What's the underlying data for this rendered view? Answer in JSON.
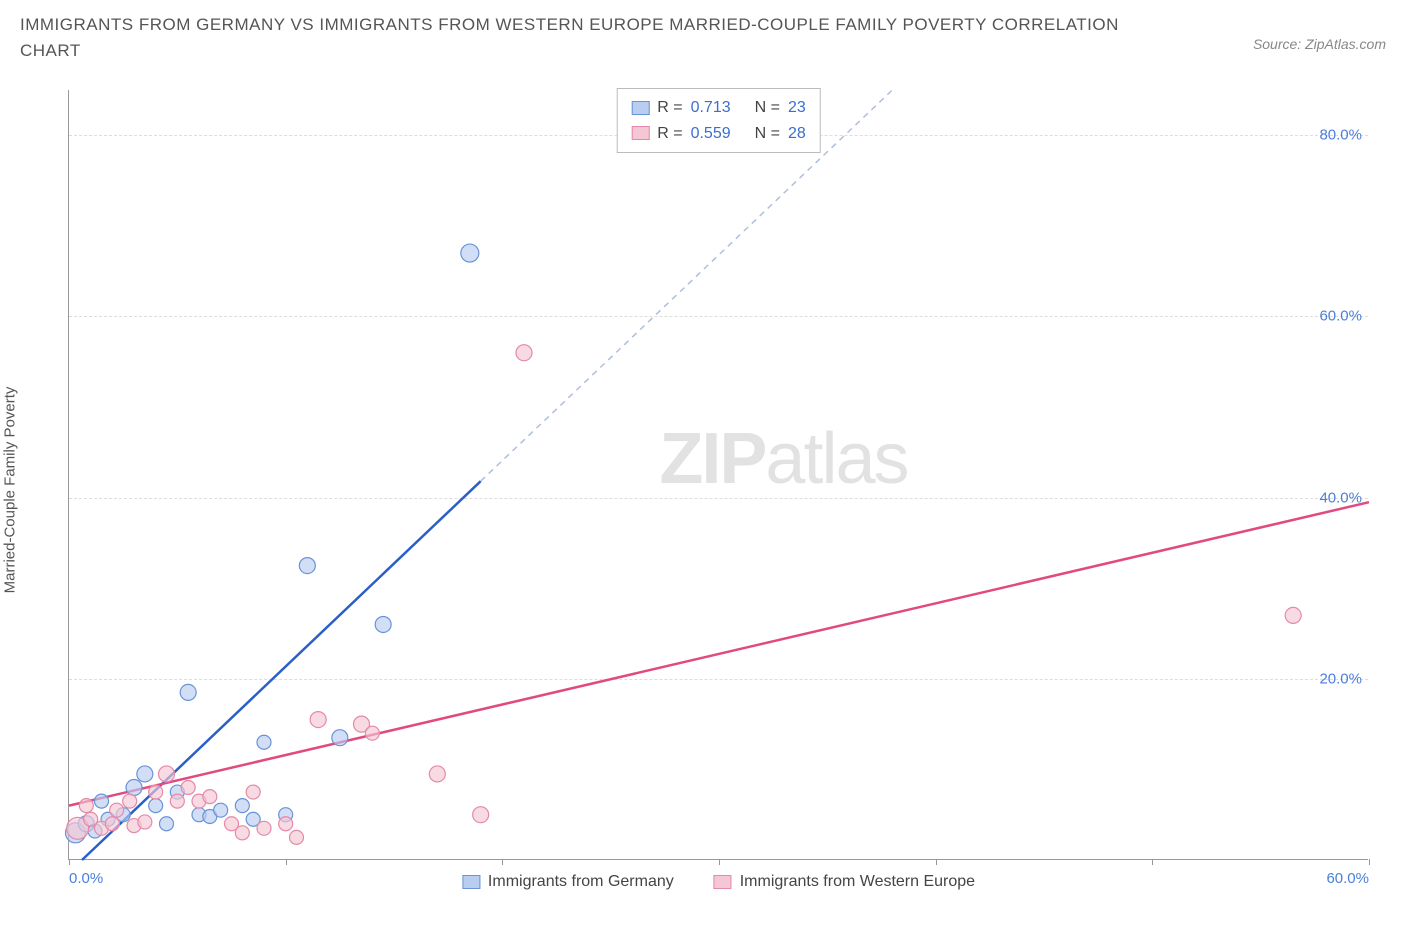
{
  "title": "IMMIGRANTS FROM GERMANY VS IMMIGRANTS FROM WESTERN EUROPE MARRIED-COUPLE FAMILY POVERTY CORRELATION CHART",
  "source": "Source: ZipAtlas.com",
  "y_axis_label": "Married-Couple Family Poverty",
  "watermark_bold": "ZIP",
  "watermark_light": "atlas",
  "chart": {
    "type": "scatter",
    "xlim": [
      0,
      60
    ],
    "ylim": [
      0,
      85
    ],
    "x_ticks": [
      0,
      10,
      20,
      30,
      40,
      50,
      60
    ],
    "x_tick_labels": {
      "0": "0.0%",
      "60": "60.0%"
    },
    "y_ticks": [
      20,
      40,
      60,
      80
    ],
    "y_tick_labels": {
      "20": "20.0%",
      "40": "40.0%",
      "60": "60.0%",
      "80": "80.0%"
    },
    "background_color": "#ffffff",
    "grid_color": "#dddddd",
    "axis_color": "#999999",
    "tick_label_color": "#4a7fd8",
    "series": [
      {
        "key": "germany",
        "label": "Immigrants from Germany",
        "color_fill": "#b8cdf0",
        "color_stroke": "#6a93d8",
        "trend_color": "#2a5fc8",
        "trend_dash_color": "#aebfdc",
        "r": 0.713,
        "n": 23,
        "trend": {
          "x1": 0.6,
          "y1": 0,
          "x2": 38,
          "y2": 85,
          "solid_until_x": 19
        },
        "points": [
          {
            "x": 0.3,
            "y": 3.0,
            "r": 10
          },
          {
            "x": 0.8,
            "y": 4.0,
            "r": 8
          },
          {
            "x": 1.2,
            "y": 3.2,
            "r": 7
          },
          {
            "x": 1.5,
            "y": 6.5,
            "r": 7
          },
          {
            "x": 1.8,
            "y": 4.5,
            "r": 7
          },
          {
            "x": 2.5,
            "y": 5.0,
            "r": 7
          },
          {
            "x": 3.0,
            "y": 8.0,
            "r": 8
          },
          {
            "x": 3.5,
            "y": 9.5,
            "r": 8
          },
          {
            "x": 4.0,
            "y": 6.0,
            "r": 7
          },
          {
            "x": 4.5,
            "y": 4.0,
            "r": 7
          },
          {
            "x": 5.0,
            "y": 7.5,
            "r": 7
          },
          {
            "x": 5.5,
            "y": 18.5,
            "r": 8
          },
          {
            "x": 6.0,
            "y": 5.0,
            "r": 7
          },
          {
            "x": 6.5,
            "y": 4.8,
            "r": 7
          },
          {
            "x": 7.0,
            "y": 5.5,
            "r": 7
          },
          {
            "x": 8.0,
            "y": 6.0,
            "r": 7
          },
          {
            "x": 8.5,
            "y": 4.5,
            "r": 7
          },
          {
            "x": 9.0,
            "y": 13.0,
            "r": 7
          },
          {
            "x": 10.0,
            "y": 5.0,
            "r": 7
          },
          {
            "x": 11.0,
            "y": 32.5,
            "r": 8
          },
          {
            "x": 12.5,
            "y": 13.5,
            "r": 8
          },
          {
            "x": 14.5,
            "y": 26.0,
            "r": 8
          },
          {
            "x": 18.5,
            "y": 67.0,
            "r": 9
          }
        ]
      },
      {
        "key": "western_europe",
        "label": "Immigrants from Western Europe",
        "color_fill": "#f5c6d4",
        "color_stroke": "#e589a8",
        "trend_color": "#e14a7e",
        "r": 0.559,
        "n": 28,
        "trend": {
          "x1": 0,
          "y1": 6.0,
          "x2": 60,
          "y2": 39.5
        },
        "points": [
          {
            "x": 0.4,
            "y": 3.5,
            "r": 11
          },
          {
            "x": 0.8,
            "y": 6.0,
            "r": 7
          },
          {
            "x": 1.0,
            "y": 4.5,
            "r": 7
          },
          {
            "x": 1.5,
            "y": 3.5,
            "r": 7
          },
          {
            "x": 2.0,
            "y": 4.0,
            "r": 7
          },
          {
            "x": 2.2,
            "y": 5.5,
            "r": 7
          },
          {
            "x": 2.8,
            "y": 6.5,
            "r": 7
          },
          {
            "x": 3.0,
            "y": 3.8,
            "r": 7
          },
          {
            "x": 3.5,
            "y": 4.2,
            "r": 7
          },
          {
            "x": 4.0,
            "y": 7.5,
            "r": 7
          },
          {
            "x": 4.5,
            "y": 9.5,
            "r": 8
          },
          {
            "x": 5.0,
            "y": 6.5,
            "r": 7
          },
          {
            "x": 5.5,
            "y": 8.0,
            "r": 7
          },
          {
            "x": 6.0,
            "y": 6.5,
            "r": 7
          },
          {
            "x": 6.5,
            "y": 7.0,
            "r": 7
          },
          {
            "x": 7.5,
            "y": 4.0,
            "r": 7
          },
          {
            "x": 8.0,
            "y": 3.0,
            "r": 7
          },
          {
            "x": 8.5,
            "y": 7.5,
            "r": 7
          },
          {
            "x": 9.0,
            "y": 3.5,
            "r": 7
          },
          {
            "x": 10.0,
            "y": 4.0,
            "r": 7
          },
          {
            "x": 10.5,
            "y": 2.5,
            "r": 7
          },
          {
            "x": 11.5,
            "y": 15.5,
            "r": 8
          },
          {
            "x": 13.5,
            "y": 15.0,
            "r": 8
          },
          {
            "x": 14.0,
            "y": 14.0,
            "r": 7
          },
          {
            "x": 17.0,
            "y": 9.5,
            "r": 8
          },
          {
            "x": 19.0,
            "y": 5.0,
            "r": 8
          },
          {
            "x": 21.0,
            "y": 56.0,
            "r": 8
          },
          {
            "x": 56.5,
            "y": 27.0,
            "r": 8
          }
        ]
      }
    ]
  },
  "stats_box": {
    "rows": [
      {
        "swatch_fill": "#b8cdf0",
        "swatch_stroke": "#6a93d8",
        "r_label": "R =",
        "r_val": "0.713",
        "n_label": "N =",
        "n_val": "23"
      },
      {
        "swatch_fill": "#f5c6d4",
        "swatch_stroke": "#e589a8",
        "r_label": "R =",
        "r_val": "0.559",
        "n_label": "N =",
        "n_val": "28"
      }
    ]
  },
  "legend": [
    {
      "swatch_fill": "#b8cdf0",
      "swatch_stroke": "#6a93d8",
      "label": "Immigrants from Germany"
    },
    {
      "swatch_fill": "#f5c6d4",
      "swatch_stroke": "#e589a8",
      "label": "Immigrants from Western Europe"
    }
  ]
}
